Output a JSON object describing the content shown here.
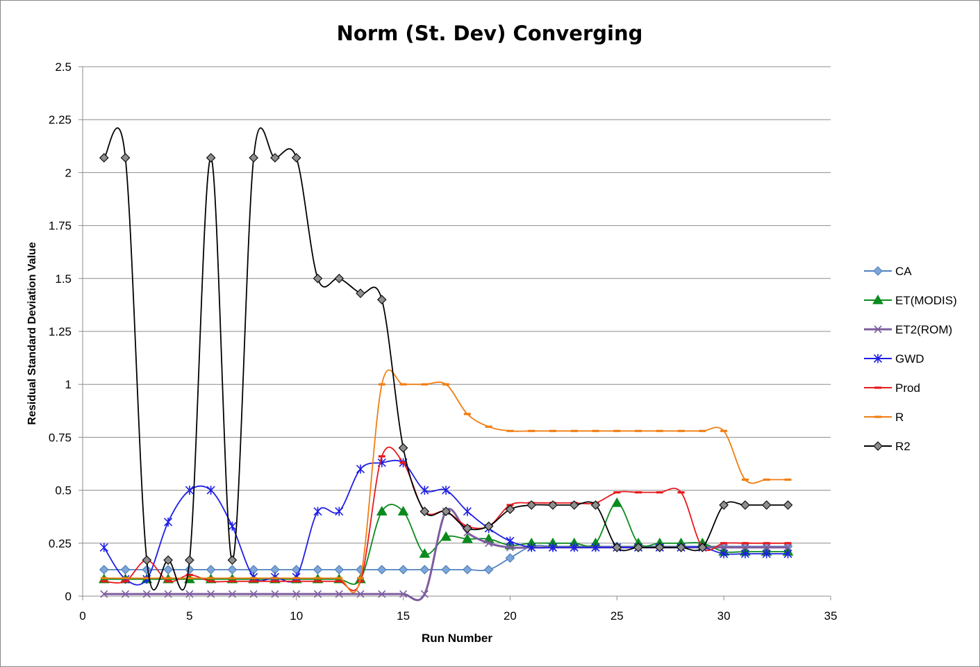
{
  "chart_data": {
    "type": "line",
    "title": "Norm (St. Dev) Converging",
    "xlabel": "Run Number",
    "ylabel": "Residual Standard Deviation Value",
    "xlim": [
      0,
      35
    ],
    "ylim": [
      0,
      2.5
    ],
    "x_ticks": [
      "0",
      "5",
      "10",
      "15",
      "20",
      "25",
      "30",
      "35"
    ],
    "y_ticks": [
      "0",
      "0.25",
      "0.5",
      "0.75",
      "1",
      "1.25",
      "1.5",
      "1.75",
      "2",
      "2.25",
      "2.5"
    ],
    "grid": "horizontal",
    "legend_position": "right",
    "smoothed": true,
    "series": [
      {
        "name": "CA",
        "color": "#4F81BD",
        "marker": "diamond",
        "x": [
          1,
          2,
          3,
          4,
          5,
          6,
          7,
          8,
          9,
          10,
          11,
          12,
          13,
          14,
          15,
          16,
          17,
          18,
          19,
          20,
          21,
          22,
          23,
          24,
          25,
          26,
          27,
          28,
          29,
          30,
          31,
          32,
          33
        ],
        "y": [
          0.125,
          0.125,
          0.125,
          0.125,
          0.125,
          0.125,
          0.125,
          0.125,
          0.125,
          0.125,
          0.125,
          0.125,
          0.125,
          0.125,
          0.125,
          0.125,
          0.125,
          0.125,
          0.125,
          0.18,
          0.235,
          0.235,
          0.235,
          0.235,
          0.235,
          0.235,
          0.235,
          0.235,
          0.235,
          0.235,
          0.235,
          0.235,
          0.235
        ]
      },
      {
        "name": "ET(MODIS)",
        "color": "#0B8A1E",
        "marker": "triangle",
        "x": [
          1,
          2,
          3,
          4,
          5,
          6,
          7,
          8,
          9,
          10,
          11,
          12,
          13,
          14,
          15,
          16,
          17,
          18,
          19,
          20,
          21,
          22,
          23,
          24,
          25,
          26,
          27,
          28,
          29,
          30,
          31,
          32,
          33
        ],
        "y": [
          0.08,
          0.08,
          0.08,
          0.08,
          0.08,
          0.08,
          0.08,
          0.08,
          0.08,
          0.08,
          0.08,
          0.08,
          0.08,
          0.4,
          0.4,
          0.2,
          0.28,
          0.27,
          0.27,
          0.24,
          0.25,
          0.25,
          0.25,
          0.25,
          0.44,
          0.25,
          0.25,
          0.25,
          0.25,
          0.21,
          0.21,
          0.21,
          0.21
        ]
      },
      {
        "name": "ET2(ROM)",
        "color": "#7D5C9E",
        "marker": "x",
        "x": [
          1,
          2,
          3,
          4,
          5,
          6,
          7,
          8,
          9,
          10,
          11,
          12,
          13,
          14,
          15,
          16,
          17,
          18,
          19,
          20,
          21,
          22,
          23,
          24,
          25,
          26,
          27,
          28,
          29,
          30,
          31,
          32,
          33
        ],
        "y": [
          0.01,
          0.01,
          0.01,
          0.01,
          0.01,
          0.01,
          0.01,
          0.01,
          0.01,
          0.01,
          0.01,
          0.01,
          0.01,
          0.01,
          0.01,
          0.01,
          0.4,
          0.3,
          0.25,
          0.23,
          0.23,
          0.23,
          0.23,
          0.23,
          0.23,
          0.23,
          0.23,
          0.23,
          0.23,
          0.23,
          0.23,
          0.23,
          0.23
        ]
      },
      {
        "name": "GWD",
        "color": "#1E1EE6",
        "marker": "star",
        "x": [
          1,
          2,
          3,
          4,
          5,
          6,
          7,
          8,
          9,
          10,
          11,
          12,
          13,
          14,
          15,
          16,
          17,
          18,
          19,
          20,
          21,
          22,
          23,
          24,
          25,
          26,
          27,
          28,
          29,
          30,
          31,
          32,
          33
        ],
        "y": [
          0.23,
          0.08,
          0.08,
          0.35,
          0.5,
          0.5,
          0.33,
          0.09,
          0.09,
          0.09,
          0.4,
          0.4,
          0.6,
          0.63,
          0.63,
          0.5,
          0.5,
          0.4,
          0.32,
          0.26,
          0.23,
          0.23,
          0.23,
          0.23,
          0.23,
          0.23,
          0.23,
          0.23,
          0.23,
          0.2,
          0.2,
          0.2,
          0.2
        ]
      },
      {
        "name": "Prod",
        "color": "#E8191C",
        "marker": "dash",
        "x": [
          1,
          2,
          3,
          4,
          5,
          6,
          7,
          8,
          9,
          10,
          11,
          12,
          13,
          14,
          15,
          16,
          17,
          18,
          19,
          20,
          21,
          22,
          23,
          24,
          25,
          26,
          27,
          28,
          29,
          30,
          31,
          32,
          33
        ],
        "y": [
          0.07,
          0.07,
          0.17,
          0.07,
          0.1,
          0.07,
          0.07,
          0.07,
          0.07,
          0.07,
          0.07,
          0.07,
          0.07,
          0.66,
          0.63,
          0.4,
          0.4,
          0.33,
          0.33,
          0.43,
          0.44,
          0.44,
          0.44,
          0.44,
          0.49,
          0.49,
          0.49,
          0.49,
          0.23,
          0.25,
          0.25,
          0.25,
          0.25
        ]
      },
      {
        "name": "R",
        "color": "#F07D12",
        "marker": "dash",
        "x": [
          1,
          2,
          3,
          4,
          5,
          6,
          7,
          8,
          9,
          10,
          11,
          12,
          13,
          14,
          15,
          16,
          17,
          18,
          19,
          20,
          21,
          22,
          23,
          24,
          25,
          26,
          27,
          28,
          29,
          30,
          31,
          32,
          33
        ],
        "y": [
          0.085,
          0.085,
          0.085,
          0.085,
          0.085,
          0.085,
          0.085,
          0.085,
          0.085,
          0.085,
          0.085,
          0.085,
          0.085,
          1.0,
          1.0,
          1.0,
          1.0,
          0.86,
          0.8,
          0.78,
          0.78,
          0.78,
          0.78,
          0.78,
          0.78,
          0.78,
          0.78,
          0.78,
          0.78,
          0.78,
          0.55,
          0.55,
          0.55
        ]
      },
      {
        "name": "R2",
        "color": "#000000",
        "marker": "diamond-gray",
        "x": [
          1,
          2,
          3,
          4,
          5,
          6,
          7,
          8,
          9,
          10,
          11,
          12,
          13,
          14,
          15,
          16,
          17,
          18,
          19,
          20,
          21,
          22,
          23,
          24,
          25,
          26,
          27,
          28,
          29,
          30,
          31,
          32,
          33
        ],
        "y": [
          2.07,
          2.07,
          0.17,
          0.17,
          0.17,
          2.07,
          0.17,
          2.07,
          2.07,
          2.07,
          1.5,
          1.5,
          1.43,
          1.4,
          0.7,
          0.4,
          0.4,
          0.32,
          0.33,
          0.41,
          0.43,
          0.43,
          0.43,
          0.43,
          0.23,
          0.23,
          0.23,
          0.23,
          0.23,
          0.43,
          0.43,
          0.43,
          0.43
        ]
      }
    ]
  }
}
